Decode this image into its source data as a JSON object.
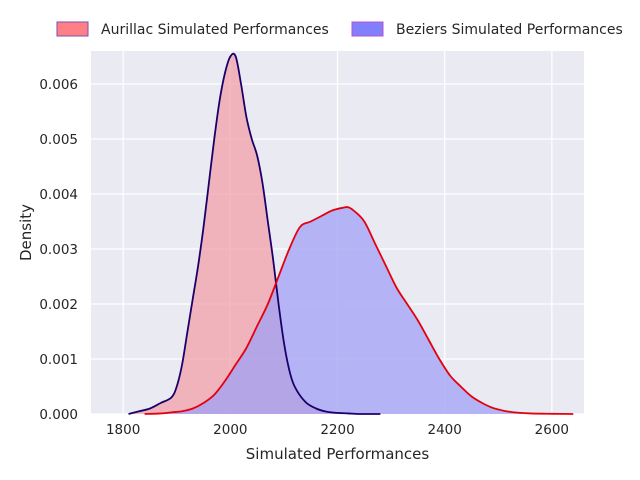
{
  "chart_data": {
    "type": "area",
    "title": "",
    "xlabel": "Simulated Performances",
    "ylabel": "Density",
    "xlim": [
      1740,
      2660
    ],
    "ylim": [
      0,
      0.0066
    ],
    "x_ticks": [
      1800,
      2000,
      2200,
      2400,
      2600
    ],
    "y_ticks": [
      0.0,
      0.001,
      0.002,
      0.003,
      0.004,
      0.005,
      0.006
    ],
    "x_tick_labels": [
      "1800",
      "2000",
      "2200",
      "2400",
      "2600"
    ],
    "y_tick_labels": [
      "0.000",
      "0.001",
      "0.002",
      "0.003",
      "0.004",
      "0.005",
      "0.006"
    ],
    "grid": true,
    "background": "#eaeaf2",
    "legend_position": "top",
    "legend": [
      {
        "label": "Aurillac Simulated Performances",
        "fill": "#ff7f86",
        "edge": "#7b4fb0"
      },
      {
        "label": "Beziers Simulated Performances",
        "fill": "#8080ff",
        "edge": "#c050c0"
      }
    ],
    "series": [
      {
        "name": "Aurillac Simulated Performances",
        "fill": "#f2a0aa",
        "fill_opacity": 0.75,
        "line_color": "#1a006b",
        "x": [
          1810,
          1830,
          1850,
          1870,
          1890,
          1900,
          1910,
          1920,
          1930,
          1940,
          1950,
          1960,
          1970,
          1980,
          1990,
          2000,
          2010,
          2020,
          2030,
          2040,
          2050,
          2060,
          2070,
          2080,
          2090,
          2100,
          2110,
          2120,
          2140,
          2160,
          2180,
          2200,
          2220,
          2240,
          2260,
          2280
        ],
        "y": [
          0.0,
          5e-05,
          0.0001,
          0.0002,
          0.0003,
          0.0005,
          0.0009,
          0.0015,
          0.0021,
          0.0027,
          0.0034,
          0.0042,
          0.005,
          0.0057,
          0.0062,
          0.0065,
          0.0065,
          0.006,
          0.0054,
          0.005,
          0.0047,
          0.0042,
          0.0035,
          0.0028,
          0.002,
          0.0013,
          0.0008,
          0.0005,
          0.00022,
          0.0001,
          4e-05,
          2e-05,
          1e-05,
          0.0,
          0.0,
          0.0
        ]
      },
      {
        "name": "Beziers Simulated Performances",
        "fill": "#a0a0f5",
        "fill_opacity": 0.75,
        "line_color": "#e4000f",
        "x": [
          1840,
          1870,
          1890,
          1910,
          1930,
          1950,
          1970,
          1990,
          2010,
          2030,
          2050,
          2070,
          2090,
          2110,
          2130,
          2150,
          2170,
          2190,
          2210,
          2220,
          2230,
          2250,
          2270,
          2290,
          2310,
          2330,
          2350,
          2370,
          2390,
          2410,
          2430,
          2450,
          2470,
          2490,
          2510,
          2530,
          2560,
          2600,
          2640
        ],
        "y": [
          0.0,
          1e-05,
          3e-05,
          5e-05,
          0.0001,
          0.0002,
          0.00035,
          0.0006,
          0.0009,
          0.0012,
          0.0016,
          0.002,
          0.0025,
          0.003,
          0.0034,
          0.0035,
          0.0036,
          0.0037,
          0.00375,
          0.00376,
          0.0037,
          0.0035,
          0.0031,
          0.0027,
          0.0023,
          0.002,
          0.0017,
          0.00135,
          0.001,
          0.0007,
          0.0005,
          0.00032,
          0.0002,
          0.00011,
          6e-05,
          3e-05,
          1e-05,
          3e-06,
          0.0
        ]
      }
    ]
  }
}
